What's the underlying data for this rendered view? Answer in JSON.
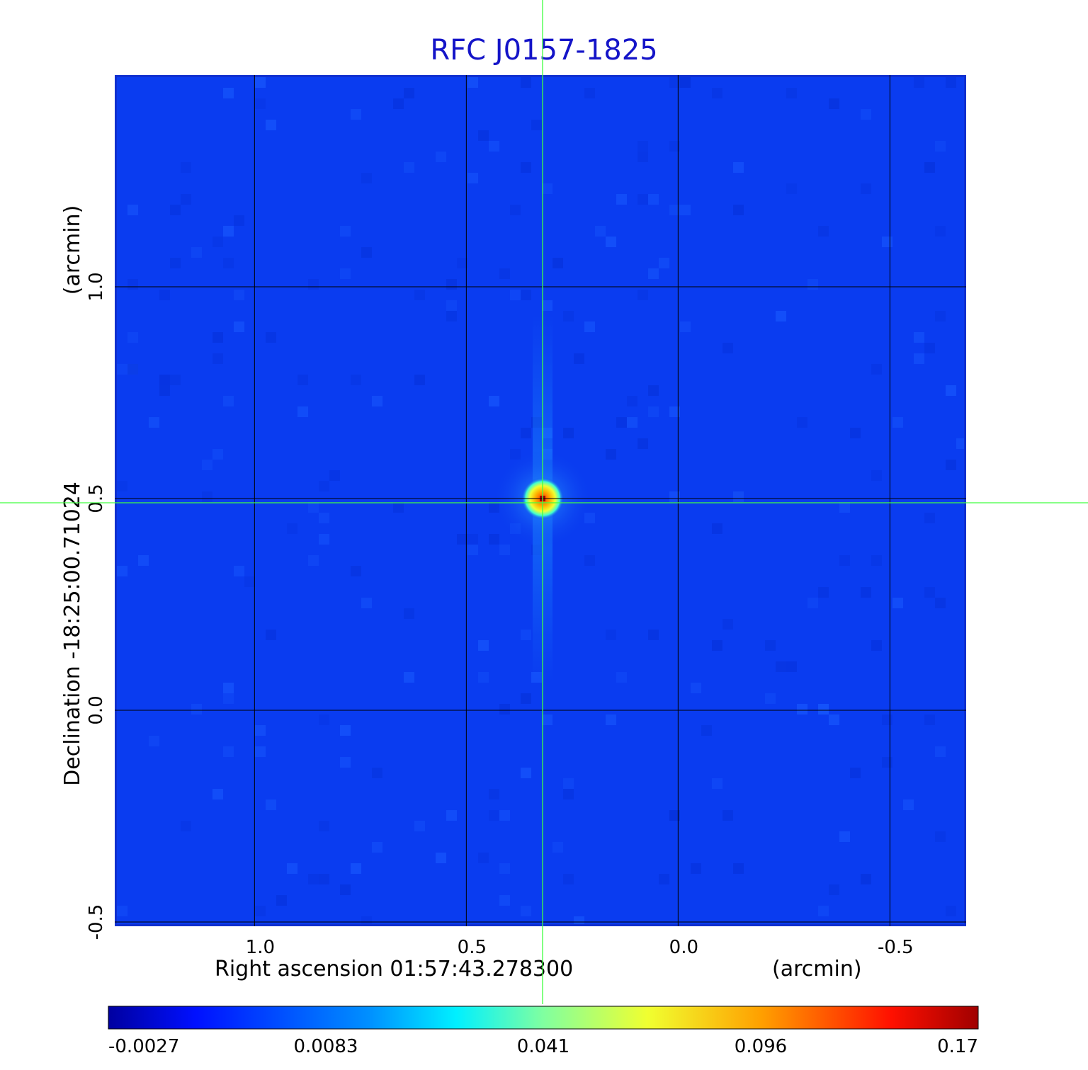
{
  "chart_data": {
    "type": "heatmap",
    "title": "RFC J0157-1825",
    "xlabel": "Right ascension  01:57:43.278300",
    "xunit": "(arcmin)",
    "ylabel": "Declination  -18:25:00.71024",
    "yunit": "(arcmin)",
    "xlim": [
      1.33,
      -0.68
    ],
    "ylim": [
      -0.51,
      1.5
    ],
    "x_ticks": [
      1.0,
      0.5,
      0.0,
      -0.5
    ],
    "x_tick_labels": [
      "1.0",
      "0.5",
      "0.0",
      "-0.5"
    ],
    "y_ticks": [
      -0.5,
      0.0,
      0.5,
      1.0
    ],
    "y_tick_labels": [
      "-0.5",
      "0.0",
      "0.5",
      "1.0"
    ],
    "grid": true,
    "source_peak": {
      "x": 0.32,
      "y": 0.5
    },
    "crosshair": {
      "x": 0.32,
      "y": 0.49
    },
    "colorbar": {
      "ticks": [
        -0.0027,
        0.0083,
        0.041,
        0.096,
        0.17
      ],
      "tick_labels": [
        "-0.0027",
        "0.0083",
        "0.041",
        "0.096",
        "0.17"
      ],
      "colormap": "jet"
    },
    "colors": {
      "background": "#0a3cf0",
      "title": "#1414c8",
      "crosshair": "#40ff40",
      "grid": "#000000"
    }
  }
}
